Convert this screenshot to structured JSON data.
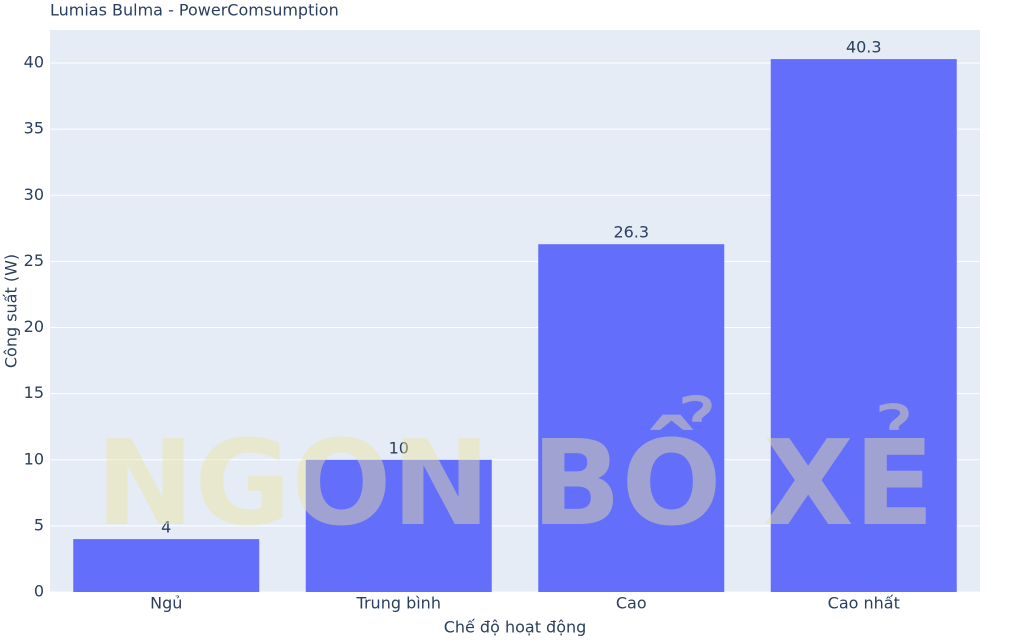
{
  "chart_data": {
    "type": "bar",
    "title": "Lumias Bulma - PowerComsumption",
    "x_label": "Chế độ hoạt động",
    "y_label": "Công suất (W)",
    "categories": [
      "Ngủ",
      "Trung bình",
      "Cao",
      "Cao nhất"
    ],
    "values": [
      4,
      10,
      26.3,
      40.3
    ],
    "color": "#636efa",
    "ylim": [
      0,
      42.5
    ],
    "yticks": [
      0,
      5,
      10,
      15,
      20,
      25,
      30,
      35,
      40
    ],
    "grid": true,
    "watermark": "NGON BỔ XẺ"
  }
}
